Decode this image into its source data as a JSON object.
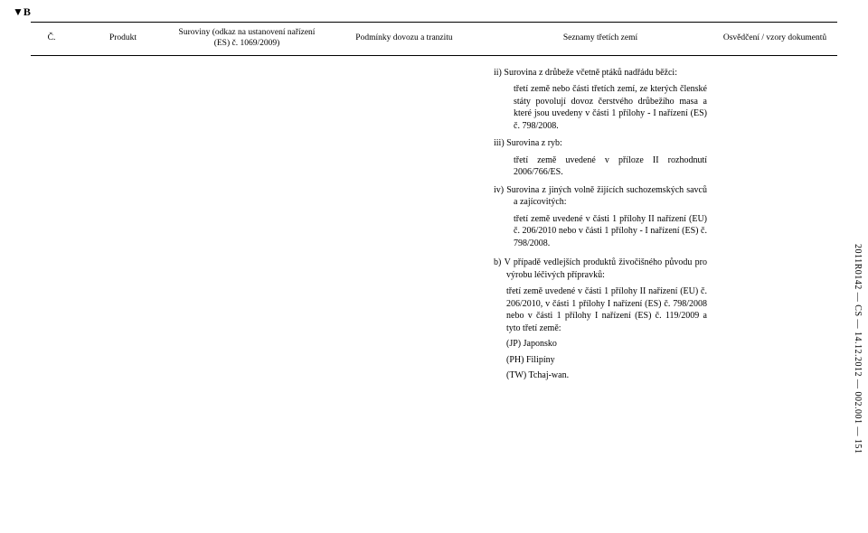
{
  "marker": "▼B",
  "footer": "2011R0142 — CS — 14.12.2012 — 002.001 — 151",
  "header": {
    "col1": "Č.",
    "col2": "Produkt",
    "col3": "Suroviny (odkaz na ustanovení nařízení (ES) č. 1069/2009)",
    "col4": "Podmínky dovozu a tranzitu",
    "col5": "Seznamy třetích zemí",
    "col6": "Osvědčení / vzory dokumentů"
  },
  "col5": {
    "ii": "ii) Surovina z drůbeže včetně ptáků nadřádu běžci:",
    "ii_body": "třetí země nebo části třetích zemí, ze kterých členské státy povolují dovoz čerstvého drůbežího masa a které jsou uvedeny v části 1 přílohy - I nařízení (ES) č. 798/2008.",
    "iii": "iii) Surovina z ryb:",
    "iii_body": "třetí země uvedené v příloze II rozhodnutí 2006/766/ES.",
    "iv": "iv) Surovina z jiných volně žijících suchozemských savců a zajícovitých:",
    "iv_body": "třetí země uvedené v části 1 přílohy II nařízení (EU) č. 206/2010 nebo v části 1 přílohy - I nařízení (ES) č. 798/2008.",
    "b": "b) V případě vedlejších produktů živočišného původu pro výrobu léčivých přípravků:",
    "b_body": "třetí země uvedené v části 1 přílohy II nařízení (EU) č. 206/2010, v části 1 přílohy I nařízení (ES) č. 798/2008 nebo v části 1 přílohy I nařízení (ES) č. 119/2009 a tyto třetí země:",
    "jp": "(JP) Japonsko",
    "ph": "(PH) Filipíny",
    "tw": "(TW) Tchaj-wan."
  }
}
